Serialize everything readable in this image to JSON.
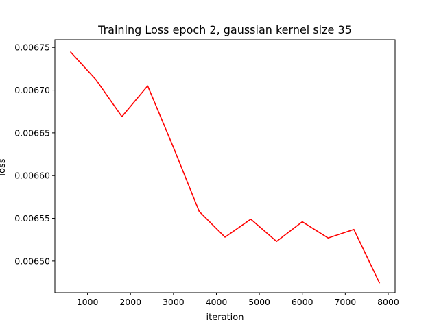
{
  "chart_data": {
    "type": "line",
    "title": "Training Loss epoch 2, gaussian kernel size 35",
    "xlabel": "iteration",
    "ylabel": "loss",
    "xlim": [
      240,
      8160
    ],
    "ylim": [
      0.006463,
      0.006759
    ],
    "xticks": [
      1000,
      2000,
      3000,
      4000,
      5000,
      6000,
      7000,
      8000
    ],
    "xtick_labels": [
      "1000",
      "2000",
      "3000",
      "4000",
      "5000",
      "6000",
      "7000",
      "8000"
    ],
    "yticks": [
      0.0065,
      0.00655,
      0.0066,
      0.00665,
      0.0067,
      0.00675
    ],
    "ytick_labels": [
      "0.00650",
      "0.00655",
      "0.00660",
      "0.00665",
      "0.00670",
      "0.00675"
    ],
    "grid": false,
    "series": [
      {
        "color": "#ff0000",
        "x": [
          600,
          1200,
          1800,
          2400,
          3000,
          3600,
          4200,
          4800,
          5400,
          6000,
          6600,
          7200,
          7800
        ],
        "y": [
          0.006745,
          0.006712,
          0.006669,
          0.006705,
          0.006633,
          0.006558,
          0.006528,
          0.006549,
          0.006523,
          0.006546,
          0.006527,
          0.006537,
          0.006474
        ]
      }
    ]
  }
}
